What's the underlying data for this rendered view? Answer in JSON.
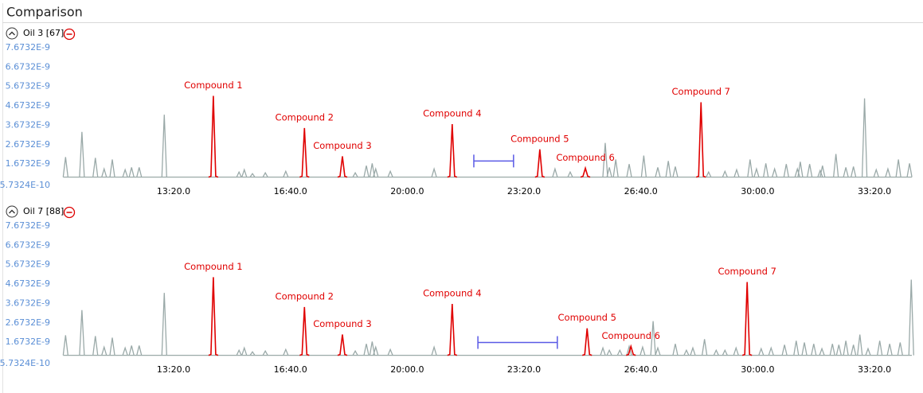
{
  "header": {
    "title": "Comparison"
  },
  "chart_data": [
    {
      "type": "line",
      "title": "Oil 3 [67]",
      "xlim": [
        605,
        2064
      ],
      "xticks": [
        {
          "value": 800,
          "label": "13:20.0"
        },
        {
          "value": 1000,
          "label": "16:40.0"
        },
        {
          "value": 1200,
          "label": "20:00.0"
        },
        {
          "value": 1400,
          "label": "23:20.0"
        },
        {
          "value": 1600,
          "label": "26:40.0"
        },
        {
          "value": 1800,
          "label": "30:00.0"
        },
        {
          "value": 2000,
          "label": "33:20.0"
        }
      ],
      "ylim": [
        5.7324e-10,
        7.6732e-09
      ],
      "yticks": [
        {
          "value": 5.7324e-10,
          "label": "5.7324E-10"
        },
        {
          "value": 1.6732e-09,
          "label": "1.6732E-9"
        },
        {
          "value": 2.6732e-09,
          "label": "2.6732E-9"
        },
        {
          "value": 3.6732e-09,
          "label": "3.6732E-9"
        },
        {
          "value": 4.6732e-09,
          "label": "4.6732E-9"
        },
        {
          "value": 5.6732e-09,
          "label": "5.6732E-9"
        },
        {
          "value": 6.6732e-09,
          "label": "6.6732E-9"
        },
        {
          "value": 7.6732e-09,
          "label": "7.6732E-9"
        }
      ],
      "baseline": 1e-09,
      "trace": {
        "color": "#9aa9a8",
        "x": [
          615,
          643,
          666,
          681,
          695,
          717,
          728,
          741,
          784,
          912,
          921,
          935,
          957,
          992,
          1111,
          1130,
          1140,
          1146,
          1171,
          1246,
          1453,
          1479,
          1539,
          1546,
          1557,
          1580,
          1605,
          1629,
          1647,
          1659,
          1716,
          1744,
          1764,
          1787,
          1798,
          1814,
          1829,
          1849,
          1868,
          1873,
          1889,
          1907,
          1911,
          1934,
          1951,
          1964,
          1983,
          2003,
          2023,
          2041,
          2060
        ],
        "values": [
          2.03e-09,
          3.33e-09,
          1.99e-09,
          1.42e-09,
          1.91e-09,
          1.38e-09,
          1.5e-09,
          1.5e-09,
          4.22e-09,
          1.26e-09,
          1.38e-09,
          1.18e-09,
          1.22e-09,
          1.3e-09,
          1.22e-09,
          1.59e-09,
          1.71e-09,
          1.42e-09,
          1.3e-09,
          1.42e-09,
          1.42e-09,
          1.26e-09,
          2.76e-09,
          1.5e-09,
          1.91e-09,
          1.67e-09,
          2.11e-09,
          1.5e-09,
          1.83e-09,
          1.54e-09,
          1.26e-09,
          1.3e-09,
          1.38e-09,
          1.91e-09,
          1.42e-09,
          1.71e-09,
          1.42e-09,
          1.67e-09,
          1.42e-09,
          1.79e-09,
          1.67e-09,
          1.34e-09,
          1.59e-09,
          2.19e-09,
          1.5e-09,
          1.54e-09,
          5.06e-09,
          1.38e-09,
          1.42e-09,
          1.91e-09,
          1.71e-09
        ]
      },
      "compounds": {
        "color": "#e00000",
        "names": [
          "Compound 1",
          "Compound 2",
          "Compound 3",
          "Compound 4",
          "Compound 5",
          "Compound 6",
          "Compound 7"
        ],
        "x": [
          868,
          1024,
          1089,
          1277,
          1427,
          1505,
          1703
        ],
        "values": [
          5.19e-09,
          3.53e-09,
          2.07e-09,
          3.73e-09,
          2.43e-09,
          1.46e-09,
          4.86e-09
        ]
      },
      "range": {
        "color": "#5a5ae6",
        "x": [
          1314,
          1382
        ],
        "value": 1.83e-09
      }
    },
    {
      "type": "line",
      "title": "Oil 7 [88]",
      "xlim": [
        605,
        2064
      ],
      "xticks": [
        {
          "value": 800,
          "label": "13:20.0"
        },
        {
          "value": 1000,
          "label": "16:40.0"
        },
        {
          "value": 1200,
          "label": "20:00.0"
        },
        {
          "value": 1400,
          "label": "23:20.0"
        },
        {
          "value": 1600,
          "label": "26:40.0"
        },
        {
          "value": 1800,
          "label": "30:00.0"
        },
        {
          "value": 2000,
          "label": "33:20.0"
        }
      ],
      "ylim": [
        5.7324e-10,
        7.6732e-09
      ],
      "yticks": [
        {
          "value": 5.7324e-10,
          "label": "5.7324E-10"
        },
        {
          "value": 1.6732e-09,
          "label": "1.6732E-9"
        },
        {
          "value": 2.6732e-09,
          "label": "2.6732E-9"
        },
        {
          "value": 3.6732e-09,
          "label": "3.6732E-9"
        },
        {
          "value": 4.6732e-09,
          "label": "4.6732E-9"
        },
        {
          "value": 5.6732e-09,
          "label": "5.6732E-9"
        },
        {
          "value": 6.6732e-09,
          "label": "6.6732E-9"
        },
        {
          "value": 7.6732e-09,
          "label": "7.6732E-9"
        }
      ],
      "baseline": 1e-09,
      "trace": {
        "color": "#9aa9a8",
        "x": [
          615,
          643,
          666,
          681,
          695,
          717,
          728,
          741,
          784,
          912,
          921,
          935,
          957,
          992,
          1111,
          1130,
          1140,
          1146,
          1171,
          1246,
          1535,
          1546,
          1564,
          1580,
          1603,
          1621,
          1629,
          1659,
          1678,
          1689,
          1709,
          1729,
          1744,
          1763,
          1806,
          1823,
          1846,
          1866,
          1880,
          1896,
          1910,
          1928,
          1939,
          1951,
          1964,
          1975,
          1989,
          2009,
          2026,
          2044,
          2063
        ],
        "values": [
          2.03e-09,
          3.33e-09,
          1.99e-09,
          1.42e-09,
          1.91e-09,
          1.38e-09,
          1.5e-09,
          1.5e-09,
          4.22e-09,
          1.26e-09,
          1.38e-09,
          1.18e-09,
          1.22e-09,
          1.3e-09,
          1.22e-09,
          1.59e-09,
          1.71e-09,
          1.42e-09,
          1.3e-09,
          1.42e-09,
          1.38e-09,
          1.26e-09,
          1.26e-09,
          1.46e-09,
          1.42e-09,
          2.76e-09,
          1.38e-09,
          1.59e-09,
          1.26e-09,
          1.38e-09,
          1.83e-09,
          1.26e-09,
          1.26e-09,
          1.38e-09,
          1.34e-09,
          1.38e-09,
          1.54e-09,
          1.75e-09,
          1.66e-09,
          1.59e-09,
          1.34e-09,
          1.59e-09,
          1.54e-09,
          1.75e-09,
          1.54e-09,
          2.07e-09,
          1.34e-09,
          1.75e-09,
          1.59e-09,
          1.66e-09,
          4.9e-09
        ]
      },
      "compounds": {
        "color": "#e00000",
        "names": [
          "Compound 1",
          "Compound 2",
          "Compound 3",
          "Compound 4",
          "Compound 5",
          "Compound 6",
          "Compound 7"
        ],
        "x": [
          868,
          1024,
          1089,
          1277,
          1508,
          1583,
          1782
        ],
        "values": [
          5.03e-09,
          3.49e-09,
          2.07e-09,
          3.65e-09,
          2.39e-09,
          1.46e-09,
          4.78e-09
        ]
      },
      "range": {
        "color": "#5a5ae6",
        "x": [
          1321,
          1457
        ],
        "value": 1.66e-09
      }
    }
  ]
}
